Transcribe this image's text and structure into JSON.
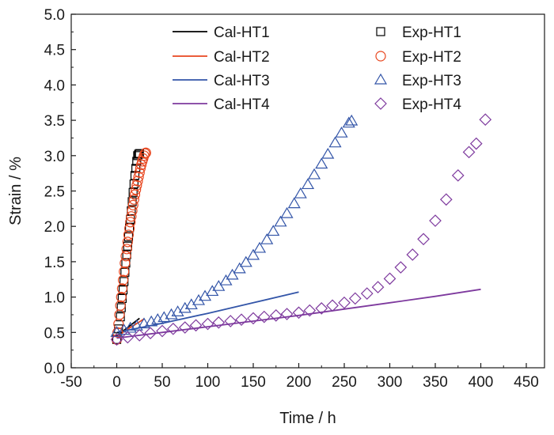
{
  "chart_data": {
    "type": "scatter",
    "title": "",
    "xlabel": "Time / h",
    "ylabel": "Strain / %",
    "xlim": [
      -50,
      470
    ],
    "ylim": [
      0.0,
      5.0
    ],
    "xticks": [
      "-50",
      "0",
      "50",
      "100",
      "150",
      "200",
      "250",
      "300",
      "350",
      "400",
      "450"
    ],
    "xtick_values": [
      -50,
      0,
      50,
      100,
      150,
      200,
      250,
      300,
      350,
      400,
      450
    ],
    "yticks": [
      "0.0",
      "0.5",
      "1.0",
      "1.5",
      "2.0",
      "2.5",
      "3.0",
      "3.5",
      "4.0",
      "4.5",
      "5.0"
    ],
    "ytick_values": [
      0,
      0.5,
      1,
      1.5,
      2,
      2.5,
      3,
      3.5,
      4,
      4.5,
      5
    ],
    "legend_position": "top",
    "grid": false,
    "calculated": [
      {
        "name": "Cal-HT1",
        "color": "#000000",
        "x": [
          0,
          5,
          10,
          15,
          20,
          25
        ],
        "y": [
          0.45,
          0.5,
          0.55,
          0.6,
          0.65,
          0.7
        ]
      },
      {
        "name": "Cal-HT2",
        "color": "#e8461f",
        "x": [
          0,
          5,
          10,
          15,
          20,
          25,
          30
        ],
        "y": [
          0.45,
          0.49,
          0.53,
          0.57,
          0.61,
          0.65,
          0.69
        ]
      },
      {
        "name": "Cal-HT3",
        "color": "#3355a8",
        "x": [
          0,
          50,
          100,
          150,
          200
        ],
        "y": [
          0.5,
          0.63,
          0.77,
          0.92,
          1.07
        ]
      },
      {
        "name": "Cal-HT4",
        "color": "#7e3a9e",
        "x": [
          0,
          50,
          100,
          150,
          200,
          250,
          300,
          350,
          400
        ],
        "y": [
          0.42,
          0.5,
          0.58,
          0.66,
          0.74,
          0.83,
          0.92,
          1.01,
          1.11
        ]
      }
    ],
    "experimental": [
      {
        "name": "Exp-HT1",
        "color": "#000000",
        "marker": "square",
        "x": [
          0,
          2,
          4,
          5,
          6,
          7,
          8,
          9,
          10,
          11,
          12,
          13,
          14,
          15,
          16,
          17,
          18,
          19,
          20,
          21,
          22,
          23,
          24,
          25
        ],
        "y": [
          0.4,
          0.55,
          0.72,
          0.85,
          0.98,
          1.1,
          1.22,
          1.35,
          1.48,
          1.6,
          1.72,
          1.85,
          1.98,
          2.1,
          2.22,
          2.35,
          2.48,
          2.6,
          2.72,
          2.82,
          2.92,
          3.0,
          3.02,
          3.03
        ]
      },
      {
        "name": "Exp-HT2",
        "color": "#e8461f",
        "marker": "circle",
        "x": [
          0,
          1,
          2,
          3,
          4,
          5,
          6,
          7,
          8,
          9,
          10,
          11,
          12,
          13,
          14,
          15,
          16,
          17,
          18,
          19,
          20,
          21,
          22,
          23,
          24,
          25,
          26,
          27,
          28,
          29,
          30,
          31,
          32
        ],
        "y": [
          0.4,
          0.5,
          0.62,
          0.75,
          0.88,
          1.0,
          1.12,
          1.24,
          1.36,
          1.48,
          1.58,
          1.68,
          1.78,
          1.88,
          1.97,
          2.06,
          2.14,
          2.22,
          2.3,
          2.38,
          2.45,
          2.52,
          2.58,
          2.64,
          2.7,
          2.76,
          2.82,
          2.87,
          2.92,
          2.96,
          3.0,
          3.03,
          3.04
        ]
      },
      {
        "name": "Exp-HT3",
        "color": "#3355a8",
        "marker": "triangle",
        "x": [
          0,
          8,
          15,
          22,
          30,
          38,
          45,
          52,
          60,
          67,
          75,
          82,
          90,
          97,
          105,
          112,
          120,
          127,
          135,
          142,
          150,
          157,
          165,
          172,
          180,
          187,
          195,
          202,
          210,
          217,
          225,
          232,
          240,
          247,
          255,
          258
        ],
        "y": [
          0.5,
          0.53,
          0.56,
          0.59,
          0.62,
          0.65,
          0.68,
          0.71,
          0.75,
          0.79,
          0.84,
          0.89,
          0.95,
          1.01,
          1.08,
          1.15,
          1.23,
          1.31,
          1.4,
          1.49,
          1.59,
          1.69,
          1.81,
          1.93,
          2.06,
          2.18,
          2.32,
          2.46,
          2.59,
          2.73,
          2.88,
          3.02,
          3.18,
          3.32,
          3.46,
          3.49
        ]
      },
      {
        "name": "Exp-HT4",
        "color": "#7e3a9e",
        "marker": "diamond",
        "x": [
          0,
          12,
          25,
          37,
          50,
          62,
          75,
          87,
          100,
          112,
          125,
          137,
          150,
          162,
          175,
          187,
          200,
          212,
          225,
          237,
          250,
          262,
          275,
          287,
          300,
          312,
          325,
          337,
          350,
          362,
          375,
          387,
          395,
          405
        ],
        "y": [
          0.4,
          0.43,
          0.46,
          0.49,
          0.52,
          0.55,
          0.57,
          0.6,
          0.62,
          0.64,
          0.66,
          0.68,
          0.7,
          0.72,
          0.74,
          0.76,
          0.78,
          0.81,
          0.84,
          0.88,
          0.92,
          0.98,
          1.05,
          1.14,
          1.26,
          1.42,
          1.6,
          1.82,
          2.08,
          2.38,
          2.72,
          3.05,
          3.17,
          3.51
        ]
      }
    ]
  }
}
